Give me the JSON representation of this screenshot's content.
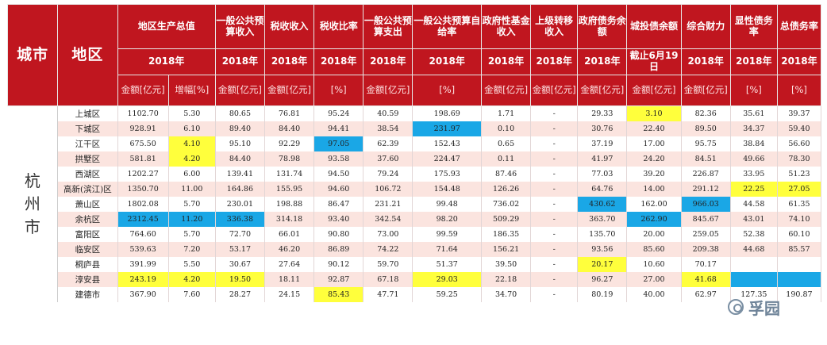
{
  "header": {
    "city": "城市",
    "district": "地区",
    "columns": [
      {
        "label": "地区生产总值",
        "year": "2018年",
        "units": [
          "金额[亿元]",
          "增幅[%]"
        ]
      },
      {
        "label": "一般公共预算收入",
        "year": "2018年",
        "units": [
          "金额[亿元]"
        ]
      },
      {
        "label": "税收收入",
        "year": "2018年",
        "units": [
          "金额[亿元]"
        ]
      },
      {
        "label": "税收比率",
        "year": "2018年",
        "units": [
          "[%]"
        ]
      },
      {
        "label": "一般公共预算支出",
        "year": "2018年",
        "units": [
          "金额[亿元]"
        ]
      },
      {
        "label": "一般公共预算自给率",
        "year": "2018年",
        "units": [
          "[%]"
        ]
      },
      {
        "label": "政府性基金收入",
        "year": "2018年",
        "units": [
          "金额[亿元]"
        ]
      },
      {
        "label": "上级转移收入",
        "year": "2018年",
        "units": [
          "金额[亿元]"
        ]
      },
      {
        "label": "政府债务余额",
        "year": "2018年",
        "units": [
          "金额[亿元]"
        ]
      },
      {
        "label": "城投债余额",
        "year": "截止6月19日",
        "units": [
          "金额[亿元]"
        ]
      },
      {
        "label": "综合财力",
        "year": "2018年",
        "units": [
          "金额[亿元]"
        ]
      },
      {
        "label": "显性债务率",
        "year": "2018年",
        "units": [
          "[%]"
        ]
      },
      {
        "label": "总债务率",
        "year": "2018年",
        "units": [
          "[%]"
        ]
      }
    ]
  },
  "city_name": "杭州市",
  "rows": [
    {
      "district": "上城区",
      "values": [
        "1102.70",
        "5.30",
        "80.65",
        "76.81",
        "95.24",
        "40.59",
        "198.69",
        "1.71",
        "-",
        "29.33",
        "3.10",
        "82.36",
        "35.61",
        "39.37"
      ],
      "yellow": [
        10
      ],
      "blue": []
    },
    {
      "district": "下城区",
      "values": [
        "928.91",
        "6.10",
        "89.40",
        "84.40",
        "94.41",
        "38.54",
        "231.97",
        "0.10",
        "-",
        "30.76",
        "22.40",
        "89.50",
        "34.37",
        "59.40"
      ],
      "yellow": [],
      "blue": [
        6
      ]
    },
    {
      "district": "江干区",
      "values": [
        "675.50",
        "4.10",
        "95.10",
        "92.29",
        "97.05",
        "62.39",
        "152.43",
        "0.65",
        "-",
        "37.19",
        "17.00",
        "95.75",
        "38.84",
        "56.60"
      ],
      "yellow": [
        1
      ],
      "blue": [
        4
      ]
    },
    {
      "district": "拱墅区",
      "values": [
        "581.81",
        "4.20",
        "84.40",
        "78.98",
        "93.58",
        "37.60",
        "224.47",
        "0.11",
        "-",
        "41.97",
        "24.20",
        "84.51",
        "49.66",
        "78.30"
      ],
      "yellow": [
        1
      ],
      "blue": []
    },
    {
      "district": "西湖区",
      "values": [
        "1202.27",
        "6.00",
        "139.41",
        "131.74",
        "94.50",
        "79.24",
        "175.93",
        "87.46",
        "-",
        "77.03",
        "39.20",
        "226.87",
        "33.95",
        "51.23"
      ],
      "yellow": [],
      "blue": []
    },
    {
      "district": "高新(滨江)区",
      "values": [
        "1350.70",
        "11.00",
        "164.86",
        "155.95",
        "94.60",
        "106.72",
        "154.48",
        "126.26",
        "-",
        "64.76",
        "14.00",
        "291.12",
        "22.25",
        "27.05"
      ],
      "yellow": [
        12,
        13
      ],
      "blue": []
    },
    {
      "district": "萧山区",
      "values": [
        "1802.08",
        "5.70",
        "230.01",
        "198.88",
        "86.47",
        "231.21",
        "99.48",
        "736.02",
        "-",
        "430.62",
        "162.00",
        "966.03",
        "44.58",
        "61.35"
      ],
      "yellow": [],
      "blue": [
        9,
        11
      ]
    },
    {
      "district": "余杭区",
      "values": [
        "2312.45",
        "11.20",
        "336.38",
        "314.18",
        "93.40",
        "342.54",
        "98.20",
        "509.29",
        "-",
        "363.70",
        "262.90",
        "845.67",
        "43.01",
        "74.10"
      ],
      "yellow": [],
      "blue": [
        0,
        1,
        2,
        10
      ]
    },
    {
      "district": "富阳区",
      "values": [
        "764.60",
        "5.70",
        "72.70",
        "66.01",
        "90.80",
        "73.00",
        "99.59",
        "186.35",
        "-",
        "135.70",
        "20.00",
        "259.05",
        "52.38",
        "60.10"
      ],
      "yellow": [],
      "blue": []
    },
    {
      "district": "临安区",
      "values": [
        "539.63",
        "7.20",
        "53.17",
        "46.20",
        "86.89",
        "74.22",
        "71.64",
        "156.21",
        "-",
        "93.56",
        "85.60",
        "209.38",
        "44.68",
        "85.57"
      ],
      "yellow": [],
      "blue": []
    },
    {
      "district": "桐庐县",
      "values": [
        "391.99",
        "5.50",
        "30.67",
        "27.64",
        "90.12",
        "59.70",
        "51.37",
        "39.50",
        "-",
        "20.17",
        "10.60",
        "70.17",
        "",
        ""
      ],
      "yellow": [
        9
      ],
      "blue": []
    },
    {
      "district": "淳安县",
      "values": [
        "243.19",
        "4.20",
        "19.50",
        "18.11",
        "92.87",
        "67.18",
        "29.03",
        "22.18",
        "-",
        "96.27",
        "27.00",
        "41.68",
        "",
        ""
      ],
      "yellow": [
        0,
        1,
        2,
        6,
        11
      ],
      "blue": [
        12,
        13
      ]
    },
    {
      "district": "建德市",
      "values": [
        "367.90",
        "7.60",
        "28.27",
        "24.15",
        "85.43",
        "47.71",
        "59.25",
        "34.70",
        "-",
        "80.19",
        "40.00",
        "62.97",
        "127.35",
        "190.87"
      ],
      "yellow": [
        4
      ],
      "blue": []
    }
  ],
  "watermark": {
    "icon": "wechat-icon",
    "text": "孚园"
  },
  "colors": {
    "header_bg": "#c0161f",
    "row_alt": "#fbe4df",
    "highlight_yellow": "#ffff3c",
    "highlight_blue": "#1aa7e6"
  }
}
